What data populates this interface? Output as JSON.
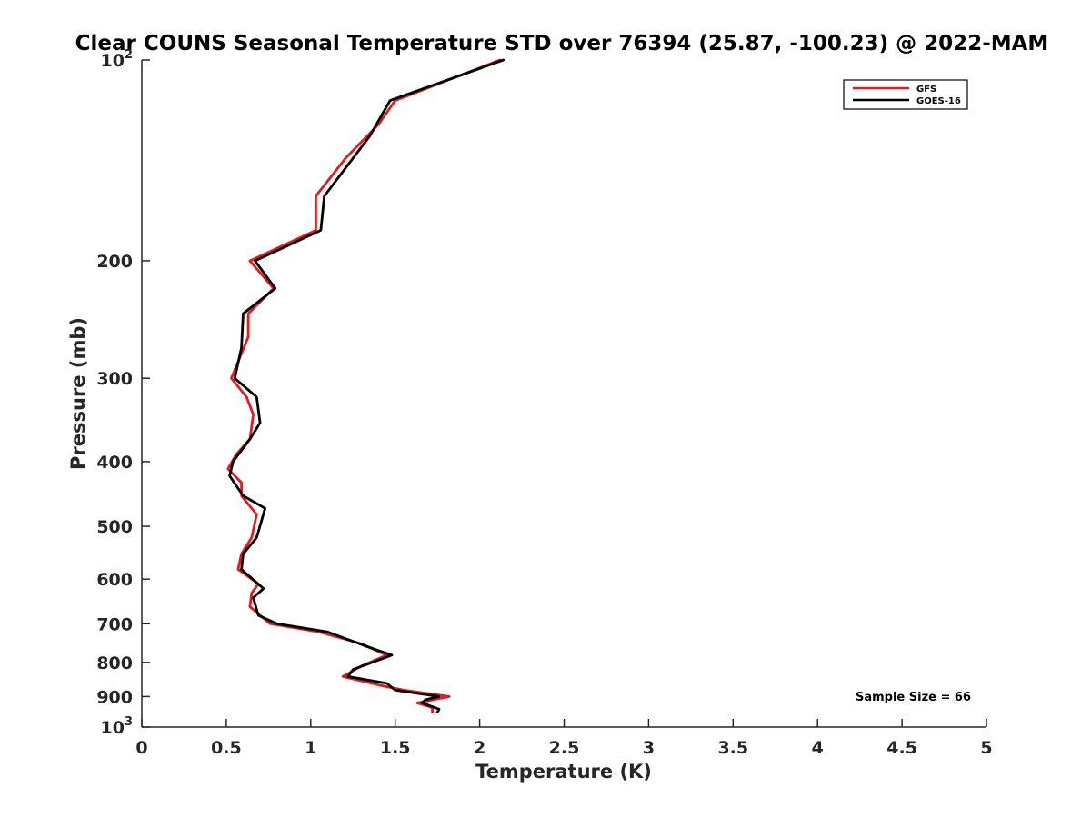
{
  "chart_data": {
    "type": "line",
    "title": "Clear COUNS Seasonal Temperature STD over 76394 (25.87, -100.23) @ 2022-MAM",
    "xlabel": "Temperature (K)",
    "ylabel": "Pressure (mb)",
    "xlim": [
      0,
      5
    ],
    "ylim": [
      1000,
      100
    ],
    "yscale": "log",
    "y_reversed": true,
    "x_ticks": [
      "0",
      "0.5",
      "1",
      "1.5",
      "2",
      "2.5",
      "3",
      "3.5",
      "4",
      "4.5",
      "5"
    ],
    "x_tick_values": [
      0,
      0.5,
      1,
      1.5,
      2,
      2.5,
      3,
      3.5,
      4,
      4.5,
      5
    ],
    "y_ticks": [
      {
        "value": 100,
        "base": "10",
        "exp": "2"
      },
      {
        "value": 200,
        "label": "200"
      },
      {
        "value": 300,
        "label": "300"
      },
      {
        "value": 400,
        "label": "400"
      },
      {
        "value": 500,
        "label": "500"
      },
      {
        "value": 600,
        "label": "600"
      },
      {
        "value": 700,
        "label": "700"
      },
      {
        "value": 800,
        "label": "800"
      },
      {
        "value": 900,
        "label": "900"
      },
      {
        "value": 1000,
        "base": "10",
        "exp": "3"
      }
    ],
    "legend_position": "top-right",
    "annotation": "Sample Size = 66",
    "series": [
      {
        "name": "GFS",
        "color": "#e41a1c",
        "points": [
          {
            "x": 2.12,
            "y": 100
          },
          {
            "x": 1.5,
            "y": 115
          },
          {
            "x": 1.4,
            "y": 125
          },
          {
            "x": 1.21,
            "y": 140
          },
          {
            "x": 1.03,
            "y": 160
          },
          {
            "x": 1.03,
            "y": 180
          },
          {
            "x": 0.64,
            "y": 200
          },
          {
            "x": 0.78,
            "y": 220
          },
          {
            "x": 0.63,
            "y": 240
          },
          {
            "x": 0.63,
            "y": 260
          },
          {
            "x": 0.53,
            "y": 300
          },
          {
            "x": 0.62,
            "y": 320
          },
          {
            "x": 0.66,
            "y": 340
          },
          {
            "x": 0.64,
            "y": 370
          },
          {
            "x": 0.56,
            "y": 390
          },
          {
            "x": 0.51,
            "y": 410
          },
          {
            "x": 0.59,
            "y": 430
          },
          {
            "x": 0.59,
            "y": 450
          },
          {
            "x": 0.68,
            "y": 480
          },
          {
            "x": 0.65,
            "y": 520
          },
          {
            "x": 0.59,
            "y": 550
          },
          {
            "x": 0.57,
            "y": 580
          },
          {
            "x": 0.69,
            "y": 610
          },
          {
            "x": 0.65,
            "y": 630
          },
          {
            "x": 0.64,
            "y": 660
          },
          {
            "x": 0.76,
            "y": 700
          },
          {
            "x": 1.05,
            "y": 720
          },
          {
            "x": 1.3,
            "y": 750
          },
          {
            "x": 1.45,
            "y": 780
          },
          {
            "x": 1.3,
            "y": 810
          },
          {
            "x": 1.19,
            "y": 840
          },
          {
            "x": 1.45,
            "y": 870
          },
          {
            "x": 1.55,
            "y": 880
          },
          {
            "x": 1.82,
            "y": 900
          },
          {
            "x": 1.63,
            "y": 920
          },
          {
            "x": 1.72,
            "y": 935
          },
          {
            "x": 1.72,
            "y": 950
          }
        ]
      },
      {
        "name": "GOES-16",
        "color": "#000000",
        "points": [
          {
            "x": 2.14,
            "y": 100
          },
          {
            "x": 1.47,
            "y": 115
          },
          {
            "x": 1.35,
            "y": 130
          },
          {
            "x": 1.08,
            "y": 160
          },
          {
            "x": 1.06,
            "y": 180
          },
          {
            "x": 0.67,
            "y": 200
          },
          {
            "x": 0.79,
            "y": 220
          },
          {
            "x": 0.6,
            "y": 240
          },
          {
            "x": 0.59,
            "y": 270
          },
          {
            "x": 0.55,
            "y": 300
          },
          {
            "x": 0.68,
            "y": 320
          },
          {
            "x": 0.7,
            "y": 350
          },
          {
            "x": 0.64,
            "y": 370
          },
          {
            "x": 0.54,
            "y": 400
          },
          {
            "x": 0.52,
            "y": 420
          },
          {
            "x": 0.6,
            "y": 450
          },
          {
            "x": 0.73,
            "y": 470
          },
          {
            "x": 0.68,
            "y": 520
          },
          {
            "x": 0.6,
            "y": 550
          },
          {
            "x": 0.59,
            "y": 580
          },
          {
            "x": 0.72,
            "y": 620
          },
          {
            "x": 0.66,
            "y": 640
          },
          {
            "x": 0.69,
            "y": 680
          },
          {
            "x": 0.8,
            "y": 700
          },
          {
            "x": 1.1,
            "y": 720
          },
          {
            "x": 1.35,
            "y": 760
          },
          {
            "x": 1.48,
            "y": 780
          },
          {
            "x": 1.25,
            "y": 820
          },
          {
            "x": 1.22,
            "y": 840
          },
          {
            "x": 1.45,
            "y": 860
          },
          {
            "x": 1.5,
            "y": 880
          },
          {
            "x": 1.76,
            "y": 900
          },
          {
            "x": 1.68,
            "y": 910
          },
          {
            "x": 1.66,
            "y": 920
          },
          {
            "x": 1.76,
            "y": 940
          },
          {
            "x": 1.75,
            "y": 950
          }
        ]
      }
    ]
  }
}
